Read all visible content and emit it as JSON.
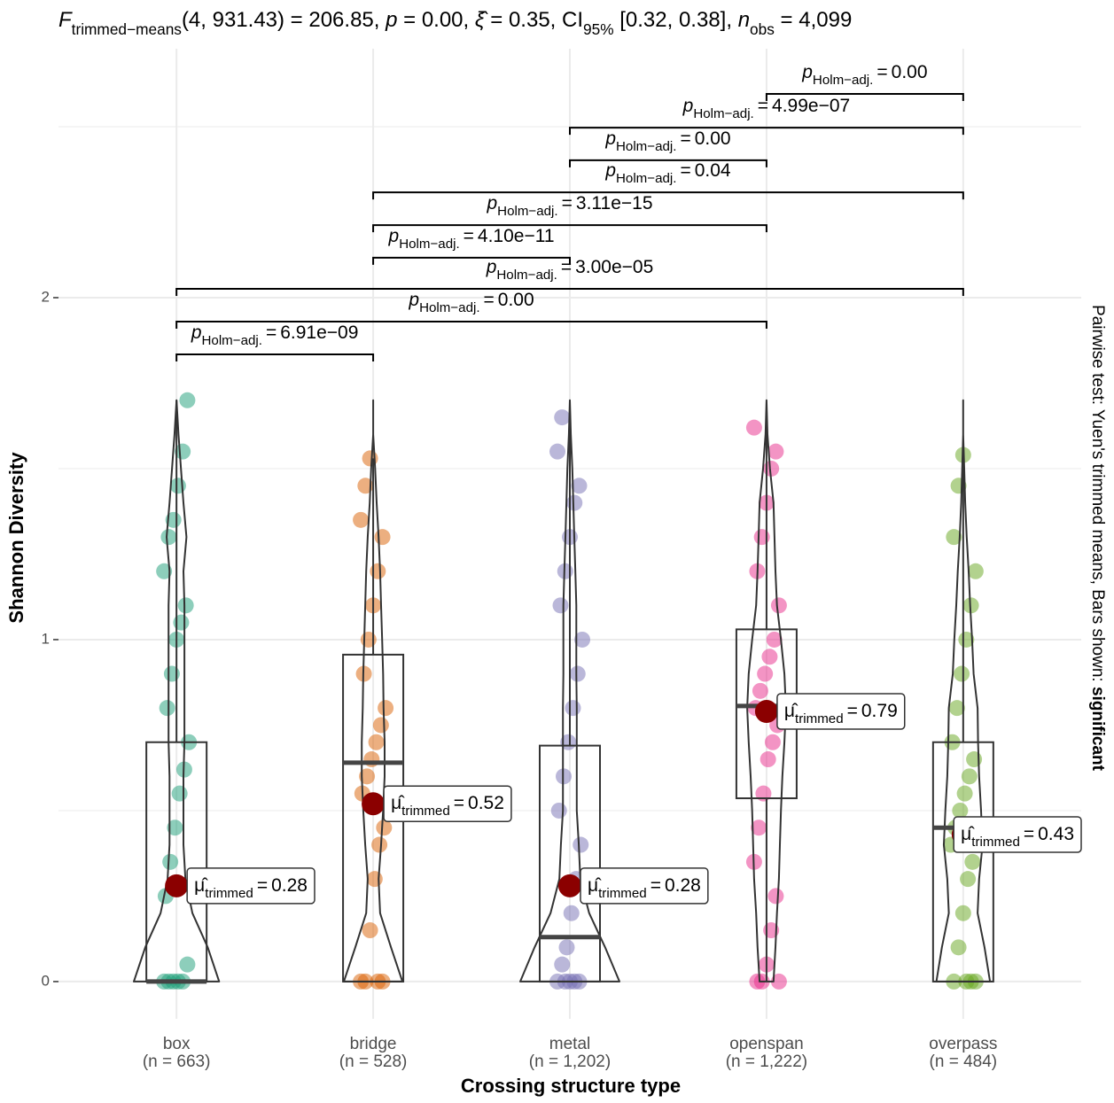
{
  "chart_data": {
    "type": "violin-box",
    "subtitle_parts": [
      {
        "text": "F",
        "style": "italic"
      },
      {
        "text": "trimmed−means",
        "style": "sub"
      },
      {
        "text": "(4, 931.43) = 206.85, ",
        "style": "normal"
      },
      {
        "text": "p",
        "style": "italic"
      },
      {
        "text": " = 0.00, ",
        "style": "normal"
      },
      {
        "text": "ξ̂",
        "style": "italic"
      },
      {
        "text": " = 0.35, CI",
        "style": "normal"
      },
      {
        "text": "95%",
        "style": "sub"
      },
      {
        "text": " [0.32, 0.38], ",
        "style": "normal"
      },
      {
        "text": "n",
        "style": "italic"
      },
      {
        "text": "obs",
        "style": "sub"
      },
      {
        "text": " = 4,099",
        "style": "normal"
      }
    ],
    "caption_parts": [
      {
        "text": "Pairwise test: Yuen's trimmed means, Bars shown: ",
        "style": "normal"
      },
      {
        "text": "significant",
        "style": "bold"
      }
    ],
    "x_label": "Crossing structure type",
    "y_label": "Shannon Diversity",
    "categories": [
      "box",
      "bridge",
      "metal",
      "openspan",
      "overpass"
    ],
    "n_labels": [
      "(n = 663)",
      "(n = 528)",
      "(n = 1,202)",
      "(n = 1,222)",
      "(n = 484)"
    ],
    "colors": [
      "#1B9E77",
      "#D95F02",
      "#7570B3",
      "#E7298A",
      "#66A61E"
    ],
    "ylim": [
      -0.109,
      2.728
    ],
    "yticks": [
      0,
      1,
      2
    ],
    "yticks_minor": [
      0.5,
      1.5,
      2.5
    ],
    "grid": true,
    "boxes": [
      {
        "lower": 0,
        "q1": 0,
        "median": 0,
        "q3": 0.7,
        "upper": 1.7
      },
      {
        "lower": 0,
        "q1": 0,
        "median": 0.64,
        "q3": 0.956,
        "upper": 1.53
      },
      {
        "lower": 0,
        "q1": 0,
        "median": 0.13,
        "q3": 0.69,
        "upper": 1.645
      },
      {
        "lower": 0,
        "q1": 0.536,
        "median": 0.806,
        "q3": 1.03,
        "upper": 1.62
      },
      {
        "lower": 0,
        "q1": 0,
        "median": 0.45,
        "q3": 0.7,
        "upper": 1.54
      }
    ],
    "means": [
      0.28,
      0.52,
      0.28,
      0.79,
      0.43
    ],
    "mean_symbol": "μ̂",
    "mean_subscript": "trimmed",
    "equals": "=",
    "violin_y": [
      0,
      0.1,
      0.2,
      0.3,
      0.4,
      0.5,
      0.6,
      0.7,
      0.8,
      0.9,
      1.0,
      1.1,
      1.2,
      1.3,
      1.4,
      1.5,
      1.6,
      1.7
    ],
    "violin_density": [
      [
        0.86,
        0.63,
        0.32,
        0.18,
        0.14,
        0.14,
        0.14,
        0.16,
        0.16,
        0.16,
        0.16,
        0.16,
        0.14,
        0.2,
        0.14,
        0.09,
        0.04,
        0
      ],
      [
        0.59,
        0.36,
        0.14,
        0.11,
        0.16,
        0.2,
        0.23,
        0.23,
        0.21,
        0.2,
        0.18,
        0.16,
        0.14,
        0.11,
        0.07,
        0.04,
        0,
        0
      ],
      [
        1,
        0.71,
        0.39,
        0.21,
        0.18,
        0.14,
        0.14,
        0.14,
        0.14,
        0.13,
        0.13,
        0.13,
        0.11,
        0.09,
        0.07,
        0.05,
        0.02,
        0
      ],
      [
        0.14,
        0.18,
        0.21,
        0.25,
        0.27,
        0.29,
        0.32,
        0.36,
        0.39,
        0.36,
        0.29,
        0.21,
        0.18,
        0.16,
        0.14,
        0.07,
        0.02,
        0
      ],
      [
        0.54,
        0.43,
        0.29,
        0.32,
        0.39,
        0.36,
        0.32,
        0.3,
        0.29,
        0.21,
        0.18,
        0.14,
        0.11,
        0.07,
        0.04,
        0.02,
        0,
        0
      ]
    ],
    "points": [
      [
        0,
        0,
        0,
        0,
        0,
        0.05,
        0.25,
        0.35,
        0.45,
        0.55,
        0.62,
        0.7,
        0.8,
        0.9,
        1.0,
        1.05,
        1.1,
        1.2,
        1.3,
        1.35,
        1.45,
        1.55,
        1.7
      ],
      [
        0,
        0,
        0,
        0,
        0.15,
        0.3,
        0.4,
        0.45,
        0.55,
        0.6,
        0.65,
        0.7,
        0.75,
        0.8,
        0.9,
        1.0,
        1.1,
        1.2,
        1.3,
        1.35,
        1.45,
        1.53
      ],
      [
        0,
        0,
        0,
        0,
        0,
        0.05,
        0.1,
        0.2,
        0.3,
        0.4,
        0.5,
        0.6,
        0.7,
        0.8,
        0.9,
        1.0,
        1.1,
        1.2,
        1.3,
        1.4,
        1.45,
        1.55,
        1.65
      ],
      [
        0,
        0,
        0,
        0.05,
        0.15,
        0.25,
        0.35,
        0.45,
        0.55,
        0.65,
        0.7,
        0.75,
        0.8,
        0.85,
        0.9,
        0.95,
        1.0,
        1.1,
        1.2,
        1.3,
        1.4,
        1.5,
        1.55,
        1.62
      ],
      [
        0,
        0,
        0,
        0,
        0.1,
        0.2,
        0.3,
        0.35,
        0.4,
        0.45,
        0.5,
        0.55,
        0.6,
        0.65,
        0.7,
        0.8,
        0.9,
        1.0,
        1.1,
        1.2,
        1.3,
        1.45,
        1.54
      ]
    ],
    "p_symbol": "p",
    "p_subscript": "Holm−adj.",
    "comparisons": [
      {
        "groups": [
          3,
          4
        ],
        "y": 2.596,
        "label": "0.00"
      },
      {
        "groups": [
          2,
          4
        ],
        "y": 2.497,
        "label": "4.99e−07"
      },
      {
        "groups": [
          2,
          3
        ],
        "y": 2.402,
        "label": "0.00"
      },
      {
        "groups": [
          1,
          4
        ],
        "y": 2.308,
        "label": "0.04"
      },
      {
        "groups": [
          1,
          3
        ],
        "y": 2.212,
        "label": "3.11e−15"
      },
      {
        "groups": [
          1,
          2
        ],
        "y": 2.117,
        "label": "4.10e−11"
      },
      {
        "groups": [
          0,
          4
        ],
        "y": 2.026,
        "label": "3.00e−05"
      },
      {
        "groups": [
          0,
          3
        ],
        "y": 1.93,
        "label": "0.00"
      },
      {
        "groups": [
          0,
          1
        ],
        "y": 1.834,
        "label": "6.91e−09"
      }
    ]
  }
}
